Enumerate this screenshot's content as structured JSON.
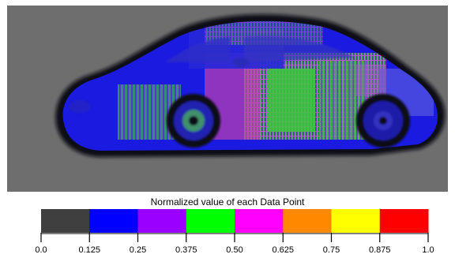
{
  "legend": {
    "title": "Normalized value of each Data Point",
    "ticks": [
      "0.0",
      "0.125",
      "0.25",
      "0.375",
      "0.50",
      "0.625",
      "0.75",
      "0.875",
      "1.0"
    ],
    "bins": [
      {
        "from": 0.0,
        "to": 0.125,
        "color": "#3f3f3f"
      },
      {
        "from": 0.125,
        "to": 0.25,
        "color": "#0000ff"
      },
      {
        "from": 0.25,
        "to": 0.375,
        "color": "#9900ff"
      },
      {
        "from": 0.375,
        "to": 0.5,
        "color": "#00ff00"
      },
      {
        "from": 0.5,
        "to": 0.625,
        "color": "#ff00ff"
      },
      {
        "from": 0.625,
        "to": 0.75,
        "color": "#ff8800"
      },
      {
        "from": 0.75,
        "to": 0.875,
        "color": "#ffff00"
      },
      {
        "from": 0.875,
        "to": 1.0,
        "color": "#ff0000"
      }
    ]
  },
  "image": {
    "subject": "car",
    "background_color": "#6e6e6e"
  }
}
